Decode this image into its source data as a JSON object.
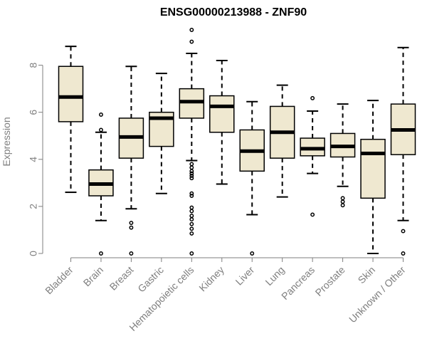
{
  "chart_data": {
    "type": "boxplot",
    "title": "ENSG00000213988 - ZNF90",
    "xlabel": "",
    "ylabel": "Expression",
    "ylim": [
      0,
      9.5
    ],
    "yticks": [
      0,
      2,
      4,
      6,
      8
    ],
    "grid": false,
    "colors": {
      "box_fill": "#efe8d0",
      "stroke": "#000000",
      "axis": "#7f7f7f"
    },
    "categories": [
      "Bladder",
      "Brain",
      "Breast",
      "Gastric",
      "Hematopoietic cells",
      "Kidney",
      "Liver",
      "Lung",
      "Pancreas",
      "Prostate",
      "Skin",
      "Unknown / Other"
    ],
    "boxes": [
      {
        "label": "Bladder",
        "min": 2.6,
        "q1": 5.6,
        "median": 6.65,
        "q3": 7.95,
        "max": 8.8,
        "outliers": []
      },
      {
        "label": "Brain",
        "min": 1.4,
        "q1": 2.45,
        "median": 2.95,
        "q3": 3.55,
        "max": 5.15,
        "outliers": [
          5.25,
          5.9,
          0.0
        ]
      },
      {
        "label": "Breast",
        "min": 1.9,
        "q1": 4.05,
        "median": 4.95,
        "q3": 5.75,
        "max": 7.95,
        "outliers": [
          1.3,
          1.1,
          0.0
        ]
      },
      {
        "label": "Gastric",
        "min": 2.55,
        "q1": 4.55,
        "median": 5.75,
        "q3": 6.0,
        "max": 7.65,
        "outliers": []
      },
      {
        "label": "Hematopoietic cells",
        "min": 3.95,
        "q1": 5.75,
        "median": 6.45,
        "q3": 7.0,
        "max": 8.5,
        "outliers": [
          9.0,
          9.5,
          3.8,
          3.65,
          3.5,
          3.4,
          3.3,
          3.2,
          2.55,
          2.45,
          1.95,
          1.8,
          1.6,
          1.45,
          1.25,
          1.05,
          0.85,
          0.0
        ]
      },
      {
        "label": "Kidney",
        "min": 2.95,
        "q1": 5.15,
        "median": 6.25,
        "q3": 6.7,
        "max": 8.2,
        "outliers": []
      },
      {
        "label": "Liver",
        "min": 1.65,
        "q1": 3.5,
        "median": 4.35,
        "q3": 5.25,
        "max": 6.45,
        "outliers": [
          0.0
        ]
      },
      {
        "label": "Lung",
        "min": 2.4,
        "q1": 4.05,
        "median": 5.15,
        "q3": 6.25,
        "max": 7.15,
        "outliers": []
      },
      {
        "label": "Pancreas",
        "min": 3.4,
        "q1": 4.15,
        "median": 4.45,
        "q3": 4.9,
        "max": 6.05,
        "outliers": [
          6.6,
          1.65
        ]
      },
      {
        "label": "Prostate",
        "min": 2.85,
        "q1": 4.1,
        "median": 4.55,
        "q3": 5.1,
        "max": 6.35,
        "outliers": [
          2.35,
          2.2,
          2.05
        ]
      },
      {
        "label": "Skin",
        "min": 0.0,
        "q1": 2.35,
        "median": 4.25,
        "q3": 4.85,
        "max": 6.5,
        "outliers": []
      },
      {
        "label": "Unknown / Other",
        "min": 1.4,
        "q1": 4.2,
        "median": 5.25,
        "q3": 6.35,
        "max": 8.75,
        "outliers": [
          0.95,
          0.0
        ]
      }
    ]
  }
}
